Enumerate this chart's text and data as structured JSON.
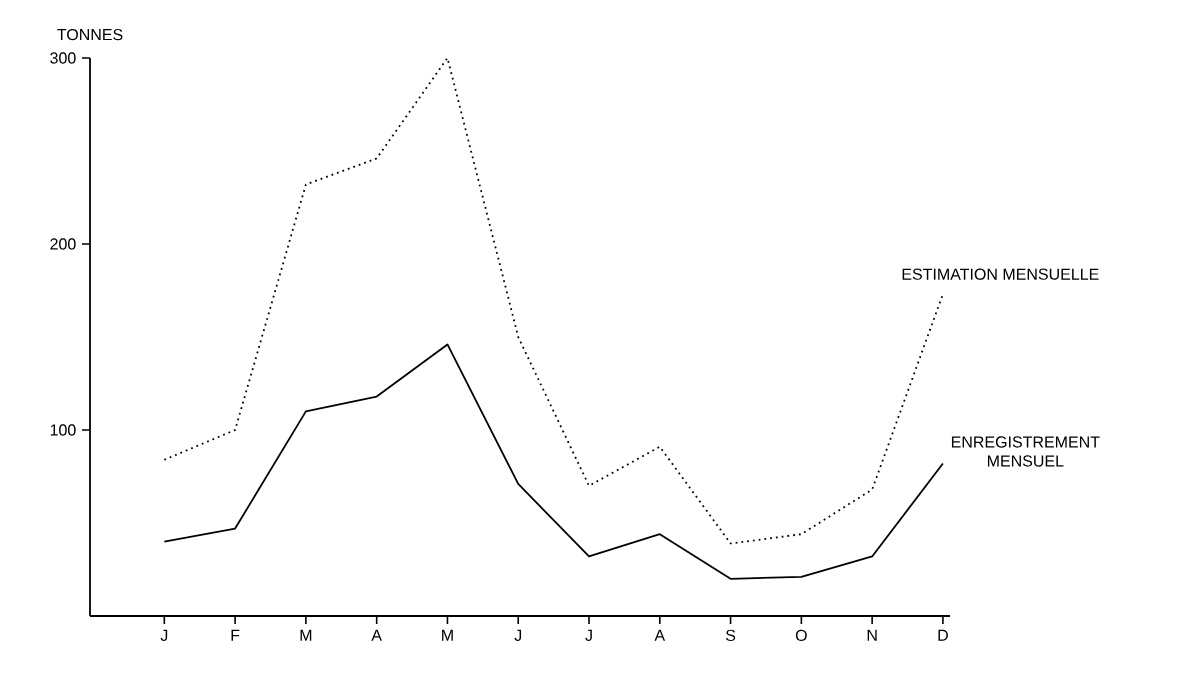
{
  "chart_data": {
    "type": "line",
    "ylabel": "TONNES",
    "categories": [
      "J",
      "F",
      "M",
      "A",
      "M",
      "J",
      "J",
      "A",
      "S",
      "O",
      "N",
      "D"
    ],
    "ylim": [
      0,
      300
    ],
    "yticks": [
      100,
      200,
      300
    ],
    "grid": false,
    "legend": false,
    "series": [
      {
        "name": "ESTIMATION MENSUELLE",
        "color": "#000000",
        "line_style": "dotted",
        "values": [
          84,
          100,
          232,
          246,
          300,
          150,
          70,
          91,
          39,
          44,
          68,
          173
        ]
      },
      {
        "name": "ENREGISTREMENT MENSUEL",
        "color": "#000000",
        "line_style": "solid",
        "values": [
          40,
          47,
          110,
          118,
          146,
          71,
          32,
          44,
          20,
          21,
          32,
          82
        ]
      }
    ]
  }
}
